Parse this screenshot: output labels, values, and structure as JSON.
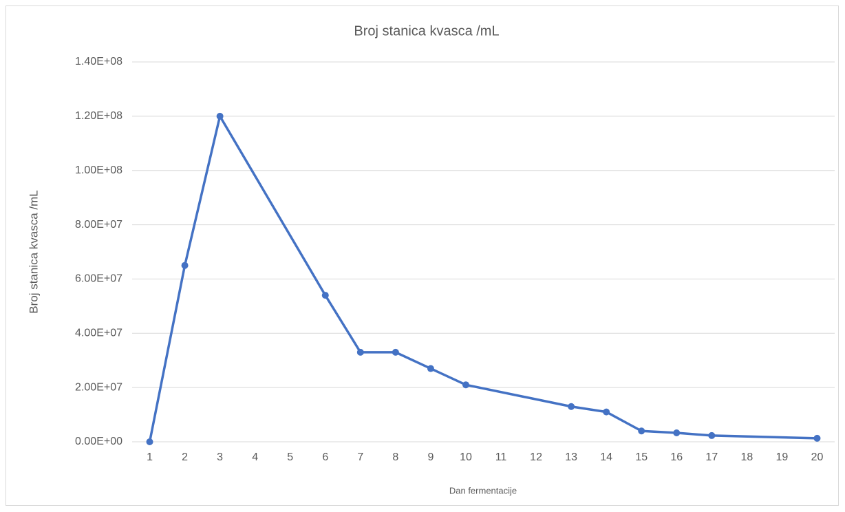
{
  "chart_data": {
    "type": "line",
    "title": "Broj stanica kvasca /mL",
    "x_label": "Dan fermentacije",
    "y_label": "Broj stanica kvasca /mL",
    "x": [
      1,
      2,
      3,
      6,
      7,
      8,
      9,
      10,
      13,
      14,
      15,
      16,
      17,
      20
    ],
    "values": [
      0,
      65000000,
      120000000,
      54000000,
      33000000,
      33000000,
      27000000,
      21000000,
      13000000,
      11000000,
      4000000,
      3300000,
      2300000,
      1300000
    ],
    "color": "#4472c4",
    "xlim": [
      0.5,
      20.5
    ],
    "xticks": [
      1,
      2,
      3,
      4,
      5,
      6,
      7,
      8,
      9,
      10,
      11,
      12,
      13,
      14,
      15,
      16,
      17,
      18,
      19,
      20
    ],
    "ylim": [
      0,
      140000000
    ],
    "yticks": [
      {
        "value": 0,
        "label": "0.00E+00"
      },
      {
        "value": 20000000,
        "label": "2.00E+07"
      },
      {
        "value": 40000000,
        "label": "4.00E+07"
      },
      {
        "value": 60000000,
        "label": "6.00E+07"
      },
      {
        "value": 80000000,
        "label": "8.00E+07"
      },
      {
        "value": 100000000,
        "label": "1.00E+08"
      },
      {
        "value": 120000000,
        "label": "1.20E+08"
      },
      {
        "value": 140000000,
        "label": "1.40E+08"
      }
    ],
    "grid": true
  }
}
